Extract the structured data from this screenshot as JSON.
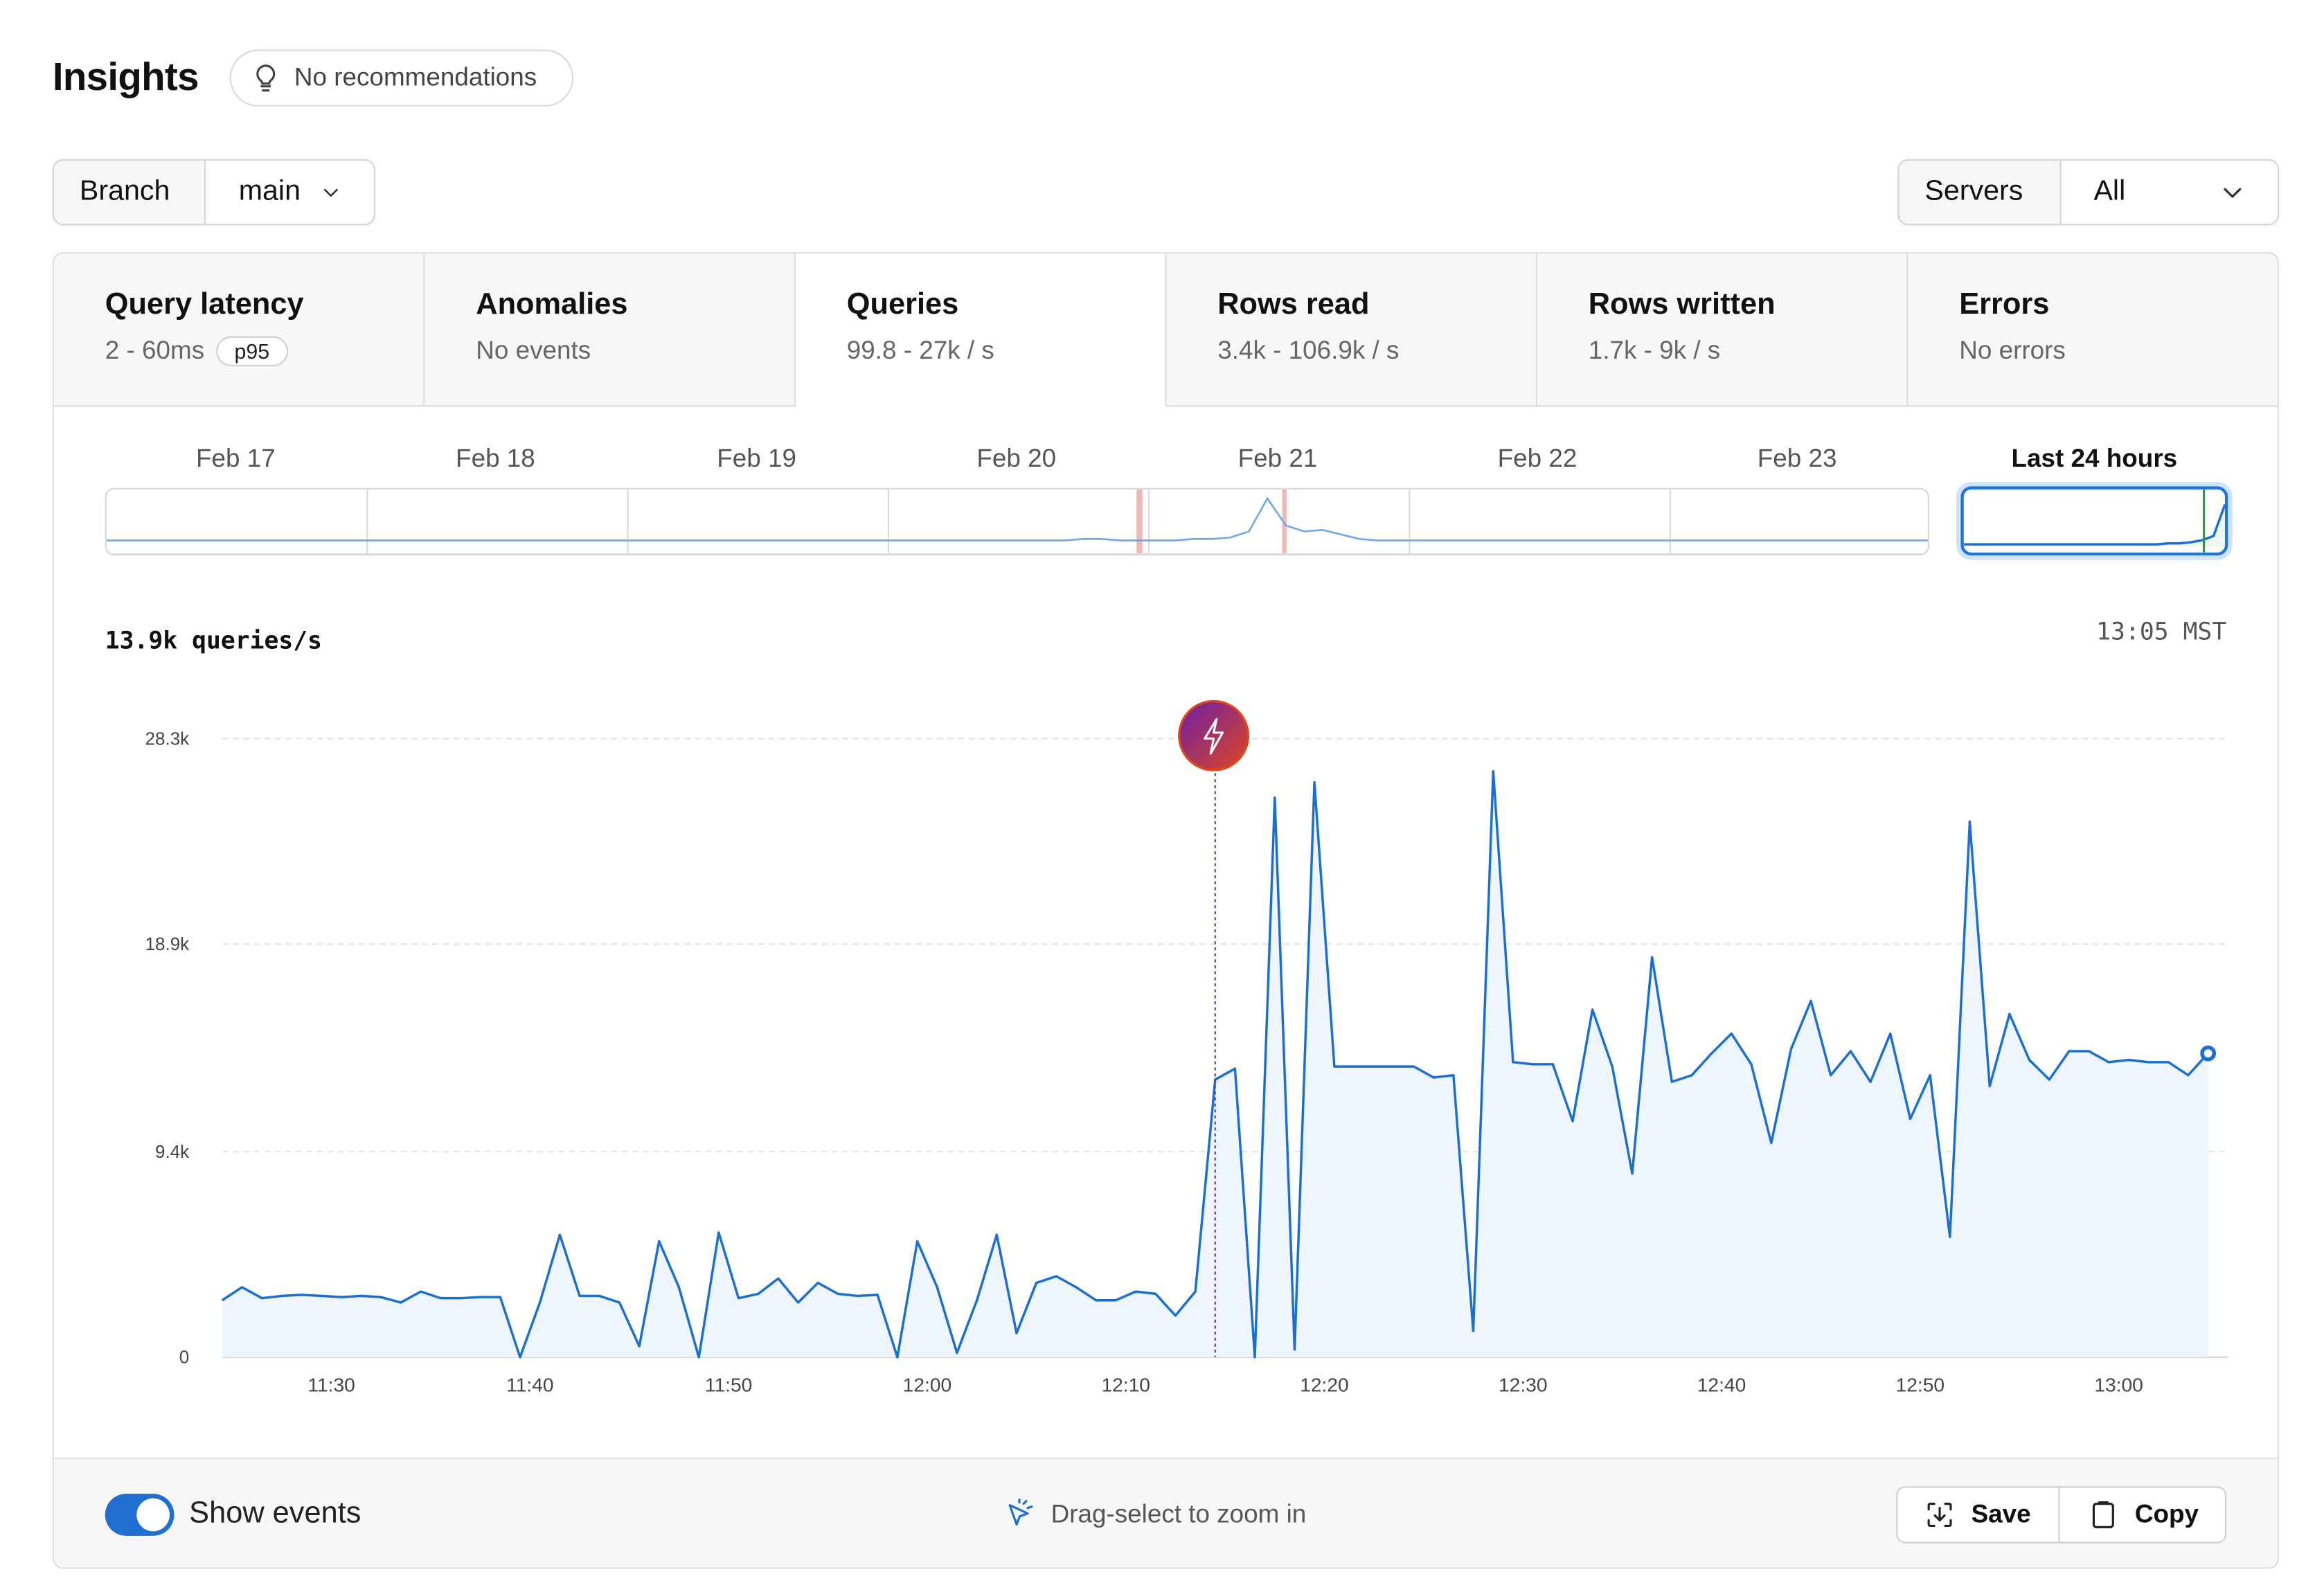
{
  "header": {
    "title": "Insights",
    "recommendations": "No recommendations"
  },
  "filters": {
    "branch_label": "Branch",
    "branch_value": "main",
    "servers_label": "Servers",
    "servers_value": "All"
  },
  "tabs": [
    {
      "title": "Query latency",
      "subtitle": "2 - 60ms",
      "badge": "p95"
    },
    {
      "title": "Anomalies",
      "subtitle": "No events"
    },
    {
      "title": "Queries",
      "subtitle": "99.8 - 27k / s",
      "active": true
    },
    {
      "title": "Rows read",
      "subtitle": "3.4k - 106.9k / s"
    },
    {
      "title": "Rows written",
      "subtitle": "1.7k - 9k / s"
    },
    {
      "title": "Errors",
      "subtitle": "No errors"
    }
  ],
  "overview": {
    "days": [
      "Feb 17",
      "Feb 18",
      "Feb 19",
      "Feb 20",
      "Feb 21",
      "Feb 22",
      "Feb 23"
    ],
    "selected": "Last 24 hours"
  },
  "readout": {
    "value": "13.9k queries/s",
    "time": "13:05 MST"
  },
  "chart_data": {
    "type": "area",
    "title": "",
    "xlabel": "",
    "ylabel": "",
    "unit": "queries/s",
    "y_ticks": [
      "0",
      "9.4k",
      "18.9k",
      "28.3k"
    ],
    "y_tick_values": [
      0,
      9400,
      18900,
      28300
    ],
    "ylim": [
      0,
      28300
    ],
    "x_ticks": [
      "11:30",
      "11:40",
      "11:50",
      "12:00",
      "12:10",
      "12:20",
      "12:30",
      "12:40",
      "12:50",
      "13:00"
    ],
    "x_tick_minutes": [
      30,
      40,
      50,
      60,
      70,
      80,
      90,
      100,
      110,
      120
    ],
    "xlim_minutes": [
      24.5,
      125.5
    ],
    "x_unit": "minutes after 11:00",
    "grid": true,
    "color": "#1b6fd1",
    "fill": "#eef5fc",
    "series": [
      {
        "x": [
          24.5,
          25.5,
          26.5,
          27.5,
          28.5,
          29.5,
          30.5,
          31.5,
          32.5,
          33.5,
          34.5,
          35.5,
          36.5,
          37.5,
          38.5,
          39.5,
          40.5,
          41.5,
          42.5,
          43.5,
          44.5,
          45.5,
          46.5,
          47.5,
          48.5,
          49.5,
          50.5,
          51.5,
          52.5,
          53.5,
          54.5,
          55.5,
          56.5,
          57.5,
          58.5,
          59.5,
          60.5,
          61.5,
          62.5,
          63.5,
          64.5,
          65.5,
          66.5,
          67.5,
          68.5,
          69.5,
          70.5,
          71.5,
          72.5,
          73.5,
          74.5,
          75.5,
          76.5,
          77.5,
          78.5,
          79.5,
          80.5,
          81.5,
          82.5,
          83.5,
          84.5,
          85.5,
          86.5,
          87.5,
          88.5,
          89.5,
          90.5,
          91.5,
          92.5,
          93.5,
          94.5,
          95.5,
          96.5,
          97.5,
          98.5,
          99.5,
          100.5,
          101.5,
          102.5,
          103.5,
          104.5,
          105.5,
          106.5,
          107.5,
          108.5,
          109.5,
          110.5,
          111.5,
          112.5,
          113.5,
          114.5,
          115.5,
          116.5,
          117.5,
          118.5,
          119.5,
          120.5,
          121.5,
          122.5,
          123.5,
          124.5
        ],
        "values": [
          2600,
          3200,
          2700,
          2800,
          2850,
          2800,
          2750,
          2800,
          2750,
          2500,
          3000,
          2700,
          2700,
          2750,
          2750,
          0,
          2500,
          5600,
          2800,
          2800,
          2500,
          500,
          5300,
          3200,
          0,
          5700,
          2700,
          2900,
          3600,
          2500,
          3400,
          2900,
          2800,
          2850,
          0,
          5300,
          3200,
          200,
          2600,
          5600,
          1100,
          3400,
          3700,
          3200,
          2600,
          2600,
          3000,
          2900,
          1900,
          3000,
          12700,
          13200,
          0,
          25600,
          350,
          26300,
          13300,
          13300,
          13300,
          13300,
          13300,
          12800,
          12900,
          1200,
          26800,
          13500,
          13400,
          13400,
          10800,
          15900,
          13300,
          8400,
          18300,
          12600,
          12900,
          13900,
          14800,
          13400,
          9800,
          14100,
          16300,
          12900,
          14000,
          12600,
          14800,
          10900,
          12900,
          5500,
          24500,
          12400,
          15700,
          13600,
          12700,
          14000,
          14000,
          13500,
          13600,
          13500,
          13500,
          12900,
          13900
        ]
      }
    ],
    "event": {
      "minute": 74.5,
      "label": "anomaly"
    }
  },
  "overview_chart": {
    "max": 28300,
    "strip_values": [
      2,
      2,
      2,
      2,
      2,
      2,
      2,
      2,
      2,
      2,
      2,
      2,
      2,
      2,
      2,
      2,
      2,
      2,
      2,
      2,
      2,
      2,
      2,
      2,
      2,
      2,
      2,
      2,
      2,
      2,
      2,
      2,
      2,
      2,
      2,
      2,
      2,
      2,
      2,
      2,
      2,
      2,
      2,
      2,
      2,
      2,
      2,
      2,
      2,
      2,
      2,
      2,
      2,
      3,
      3,
      2,
      2,
      2,
      2,
      3,
      3,
      4,
      8,
      30,
      12,
      8,
      9,
      6,
      3,
      2,
      2,
      2,
      2,
      2,
      2,
      2,
      2,
      2,
      2,
      2,
      2,
      2,
      2,
      2,
      2,
      2,
      2,
      2,
      2,
      2,
      2,
      2,
      2,
      2,
      2,
      2,
      2,
      2,
      2,
      2
    ],
    "box_values": [
      2,
      2,
      2,
      2,
      2,
      2,
      2,
      2,
      2,
      2,
      2,
      2,
      2,
      2,
      2,
      2,
      2,
      2,
      3,
      3,
      4,
      6,
      10,
      40
    ]
  },
  "footer": {
    "show_events_label": "Show events",
    "show_events_on": true,
    "hint": "Drag-select to zoom in",
    "save_label": "Save",
    "copy_label": "Copy"
  },
  "colors": {
    "accent": "#1e6fd0",
    "line": "#1b6fd1",
    "event_start": "#6a1fa8",
    "event_end": "#e0471f",
    "anomaly_marker": "#f3b6b6"
  },
  "icons": {
    "recommendations": "lightbulb-icon",
    "dropdown": "chevron-down-icon",
    "event": "lightning-icon",
    "zoom_hint": "cursor-click-icon",
    "save": "download-icon",
    "copy": "clipboard-icon"
  }
}
